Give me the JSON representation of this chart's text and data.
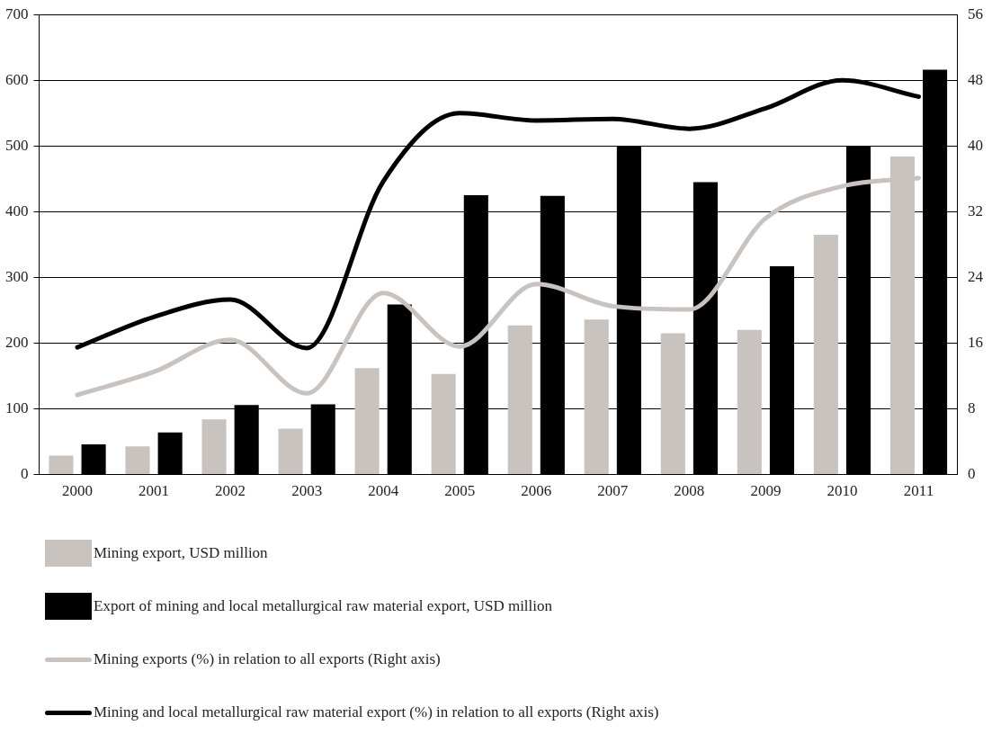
{
  "chart_data": {
    "type": "bar",
    "categories": [
      "2000",
      "2001",
      "2002",
      "2003",
      "2004",
      "2005",
      "2006",
      "2007",
      "2008",
      "2009",
      "2010",
      "2011"
    ],
    "series": [
      {
        "name": "Mining export, USD million",
        "color": "#c9c3c0",
        "values": [
          29,
          43,
          84,
          70,
          162,
          153,
          227,
          236,
          215,
          220,
          365,
          484
        ]
      },
      {
        "name": "Export of mining and local metallurgical raw material export, USD million",
        "color": "#000000",
        "values": [
          46,
          64,
          106,
          107,
          259,
          425,
          424,
          499,
          445,
          317,
          499,
          616
        ]
      },
      {
        "name": "Mining exports (%) in relation to all exports (Right axis)",
        "type": "line",
        "axis": "y2",
        "color": "#c9c3c0",
        "values": [
          9.7,
          12.5,
          16.4,
          9.9,
          22.1,
          15.6,
          23.2,
          20.5,
          20.1,
          31.2,
          35.1,
          36.1
        ]
      },
      {
        "name": "Mining and local metallurgical raw material export (%) in relation to all exports (Right axis)",
        "type": "line",
        "axis": "y2",
        "color": "#000000",
        "values": [
          15.5,
          19.2,
          21.3,
          15.4,
          35.7,
          44,
          43.1,
          43.3,
          42.1,
          44.6,
          48,
          46
        ]
      }
    ],
    "ylim": [
      0,
      700
    ],
    "yticks": [
      0,
      100,
      200,
      300,
      400,
      500,
      600,
      700
    ],
    "y2lim": [
      0,
      56
    ],
    "y2ticks": [
      0,
      8,
      16,
      24,
      32,
      40,
      48,
      56
    ],
    "grid": "y",
    "legend": "bottom",
    "marker": "none",
    "line_style": "solid"
  }
}
